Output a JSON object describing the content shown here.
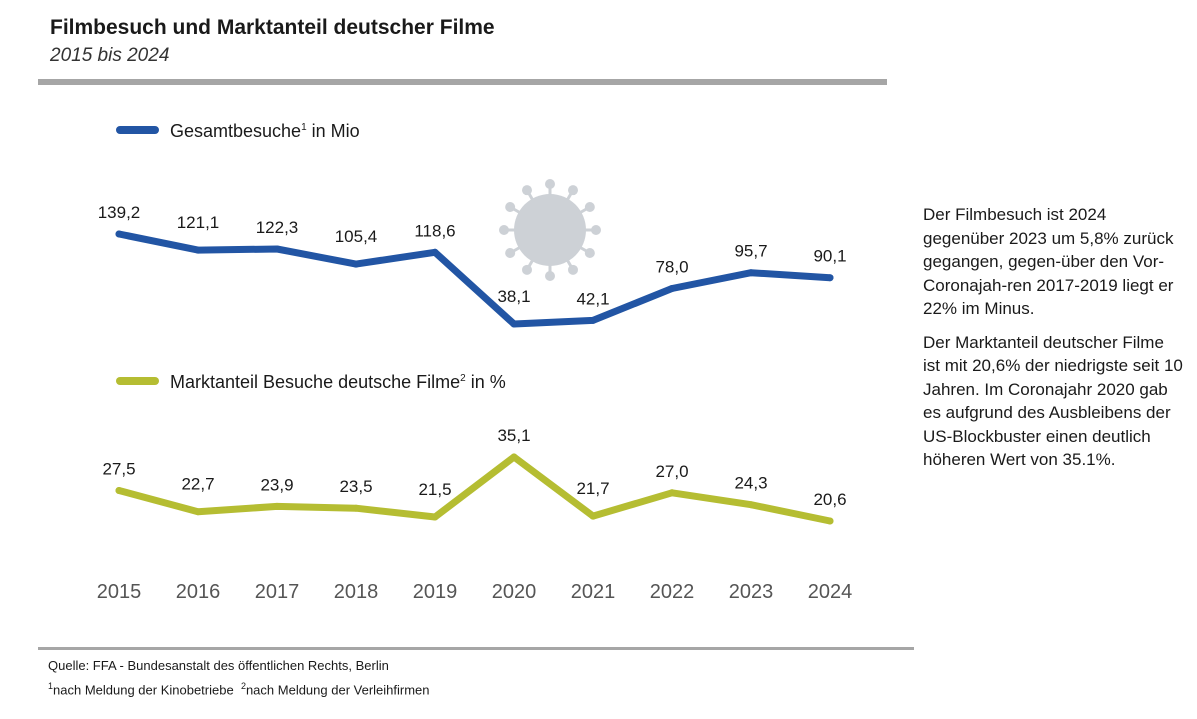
{
  "header": {
    "title": "Filmbesuch und Marktanteil deutscher Filme",
    "subtitle": "2015 bis 2024"
  },
  "colors": {
    "visits_line": "#2255a4",
    "share_line": "#b5bd32",
    "rule": "#a6a6a6",
    "virus": "#cdd1d6"
  },
  "icons": {
    "pandemic": "coronavirus-icon"
  },
  "chart_data": {
    "type": "line",
    "x": [
      "2015",
      "2016",
      "2017",
      "2018",
      "2019",
      "2020",
      "2021",
      "2022",
      "2023",
      "2024"
    ],
    "series": [
      {
        "name": "Gesamtbesuche",
        "name_suffix": " in Mio",
        "footnote": "1",
        "values": [
          139.2,
          121.1,
          122.3,
          105.4,
          118.6,
          38.1,
          42.1,
          78.0,
          95.7,
          90.1
        ],
        "labels": [
          "139,2",
          "121,1",
          "122,3",
          "105,4",
          "118,6",
          "38,1",
          "42,1",
          "78,0",
          "95,7",
          "90,1"
        ]
      },
      {
        "name": "Marktanteil Besuche deutsche Filme",
        "name_suffix": " in %",
        "footnote": "2",
        "values": [
          27.5,
          22.7,
          23.9,
          23.5,
          21.5,
          35.1,
          21.7,
          27.0,
          24.3,
          20.6
        ],
        "labels": [
          "27,5",
          "22,7",
          "23,9",
          "23,5",
          "21,5",
          "35,1",
          "21,7",
          "27,0",
          "24,3",
          "20,6"
        ]
      }
    ],
    "grid": false,
    "legend": "top-left"
  },
  "commentary": {
    "paragraph_1": "Der Filmbesuch ist 2024 gegenüber 2023 um 5,8% zurück gegangen, gegen-über den Vor-Coronajah-ren 2017-2019 liegt er 22% im Minus.",
    "paragraph_2": "Der Marktanteil deutscher Filme ist mit 20,6% der niedrigste seit 10 Jahren. Im Coronajahr 2020 gab es aufgrund des Ausbleibens der US-Blockbuster einen deutlich höheren Wert von 35.1%."
  },
  "footer": {
    "source": "Quelle: FFA - Bundesanstalt des öffentlichen Rechts, Berlin",
    "footnote_1_mark": "1",
    "footnote_1_text": "nach Meldung der Kinobetriebe",
    "footnote_2_mark": "2",
    "footnote_2_text": "nach Meldung der Verleihfirmen"
  }
}
